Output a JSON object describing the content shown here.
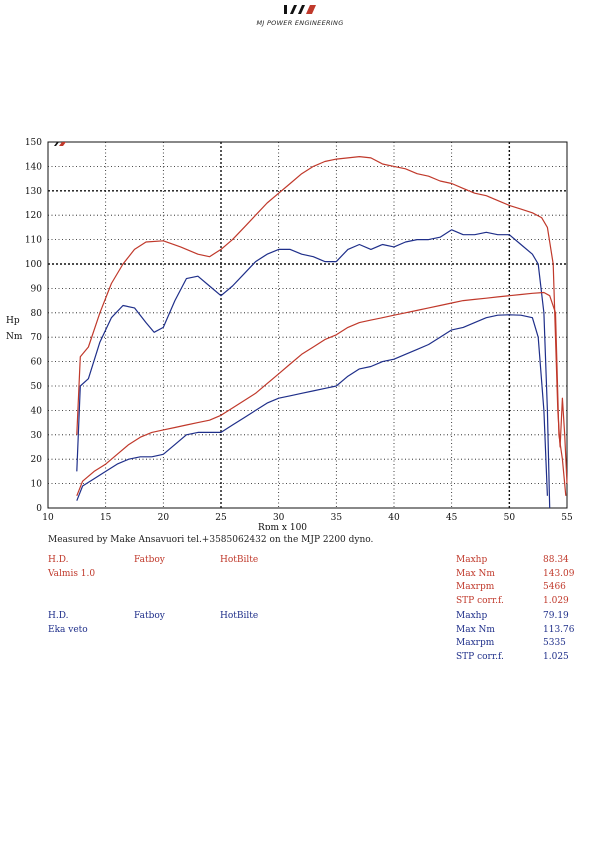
{
  "header": {
    "logo_mark": "MJP",
    "logo_text": "MJ POWER ENGINEERING"
  },
  "measured_note": "Measured by Make Ansavuori tel.+3585062432 on the MJP 2200 dyno.",
  "runs": [
    {
      "color": "#c0392b",
      "make": "H.D.",
      "model": "Fatboy",
      "tag": "HotBilte",
      "name": "Valmis 1.0",
      "stats": [
        {
          "label": "Maxhp",
          "value": "88.34"
        },
        {
          "label": "Max Nm",
          "value": "143.09"
        },
        {
          "label": "Maxrpm",
          "value": "5466"
        },
        {
          "label": "STP corr.f.",
          "value": "1.029"
        }
      ]
    },
    {
      "color": "#1f2f8a",
      "make": "H.D.",
      "model": "Fatboy",
      "tag": "HotBilte",
      "name": "Eka veto",
      "stats": [
        {
          "label": "Maxhp",
          "value": "79.19"
        },
        {
          "label": "Max Nm",
          "value": "113.76"
        },
        {
          "label": "Maxrpm",
          "value": "5335"
        },
        {
          "label": "STP corr.f.",
          "value": "1.025"
        }
      ]
    }
  ],
  "chart_data": {
    "type": "line",
    "xlabel": "Rpm x 100",
    "ylabel": "Hp Nm",
    "ylabel_lines": [
      "Hp",
      "Nm"
    ],
    "xlim": [
      10,
      55
    ],
    "ylim": [
      0,
      150
    ],
    "xticks": [
      10,
      15,
      20,
      25,
      30,
      35,
      40,
      45,
      50,
      55
    ],
    "yticks": [
      0,
      10,
      20,
      30,
      40,
      50,
      60,
      70,
      80,
      90,
      100,
      110,
      120,
      130,
      140,
      150
    ],
    "grid": true,
    "series": [
      {
        "name": "Valmis 1.0 Nm",
        "color": "#c0392b",
        "points": [
          [
            12.5,
            30
          ],
          [
            12.8,
            62
          ],
          [
            13.5,
            66
          ],
          [
            14.5,
            80
          ],
          [
            15.5,
            92
          ],
          [
            16.5,
            100
          ],
          [
            17.5,
            106
          ],
          [
            18.5,
            109
          ],
          [
            20,
            109.5
          ],
          [
            21.5,
            107
          ],
          [
            23,
            104
          ],
          [
            24,
            103
          ],
          [
            25,
            106
          ],
          [
            26,
            110
          ],
          [
            27,
            115
          ],
          [
            28,
            120
          ],
          [
            29,
            125
          ],
          [
            30,
            129
          ],
          [
            31,
            133
          ],
          [
            32,
            137
          ],
          [
            33,
            140
          ],
          [
            34,
            142
          ],
          [
            35,
            143
          ],
          [
            36,
            143.5
          ],
          [
            37,
            144
          ],
          [
            38,
            143.5
          ],
          [
            39,
            141
          ],
          [
            40,
            140
          ],
          [
            41,
            139
          ],
          [
            42,
            137
          ],
          [
            43,
            136
          ],
          [
            44,
            134
          ],
          [
            45,
            133
          ],
          [
            46,
            131
          ],
          [
            47,
            129
          ],
          [
            48,
            128
          ],
          [
            49,
            126
          ],
          [
            50,
            124
          ],
          [
            51,
            122.5
          ],
          [
            52,
            121
          ],
          [
            52.8,
            119
          ],
          [
            53.3,
            115
          ],
          [
            53.8,
            100
          ],
          [
            54,
            70
          ],
          [
            54.2,
            40
          ],
          [
            54.4,
            25
          ],
          [
            54.6,
            45
          ],
          [
            54.8,
            30
          ],
          [
            55,
            10
          ]
        ]
      },
      {
        "name": "Eka veto Nm",
        "color": "#1f2f8a",
        "points": [
          [
            12.5,
            15
          ],
          [
            12.8,
            50
          ],
          [
            13.5,
            53
          ],
          [
            14.5,
            68
          ],
          [
            15.5,
            78
          ],
          [
            16.5,
            83
          ],
          [
            17.5,
            82
          ],
          [
            18.5,
            76
          ],
          [
            19.2,
            72
          ],
          [
            20,
            74
          ],
          [
            21,
            85
          ],
          [
            22,
            94
          ],
          [
            23,
            95
          ],
          [
            24,
            91
          ],
          [
            25,
            87
          ],
          [
            26,
            91
          ],
          [
            27,
            96
          ],
          [
            28,
            101
          ],
          [
            29,
            104
          ],
          [
            30,
            106
          ],
          [
            31,
            106
          ],
          [
            32,
            104
          ],
          [
            33,
            103
          ],
          [
            34,
            101
          ],
          [
            35,
            101
          ],
          [
            36,
            106
          ],
          [
            37,
            108
          ],
          [
            38,
            106
          ],
          [
            39,
            108
          ],
          [
            40,
            107
          ],
          [
            41,
            109
          ],
          [
            42,
            110
          ],
          [
            43,
            110
          ],
          [
            44,
            111
          ],
          [
            45,
            114
          ],
          [
            46,
            112
          ],
          [
            47,
            112
          ],
          [
            48,
            113
          ],
          [
            49,
            112
          ],
          [
            50,
            112
          ],
          [
            51,
            108
          ],
          [
            52,
            104
          ],
          [
            52.5,
            100
          ],
          [
            53,
            80
          ],
          [
            53.3,
            40
          ],
          [
            53.5,
            0
          ]
        ]
      },
      {
        "name": "Valmis 1.0 Hp",
        "color": "#c0392b",
        "points": [
          [
            12.5,
            5
          ],
          [
            13,
            11
          ],
          [
            14,
            15
          ],
          [
            15,
            18
          ],
          [
            16,
            22
          ],
          [
            17,
            26
          ],
          [
            18,
            29
          ],
          [
            19,
            31
          ],
          [
            20,
            32
          ],
          [
            21,
            33
          ],
          [
            22,
            34
          ],
          [
            23,
            35
          ],
          [
            24,
            36
          ],
          [
            25,
            38
          ],
          [
            26,
            41
          ],
          [
            27,
            44
          ],
          [
            28,
            47
          ],
          [
            29,
            51
          ],
          [
            30,
            55
          ],
          [
            31,
            59
          ],
          [
            32,
            63
          ],
          [
            33,
            66
          ],
          [
            34,
            69
          ],
          [
            35,
            71
          ],
          [
            36,
            74
          ],
          [
            37,
            76
          ],
          [
            38,
            77
          ],
          [
            39,
            78
          ],
          [
            40,
            79
          ],
          [
            41,
            80
          ],
          [
            42,
            81
          ],
          [
            43,
            82
          ],
          [
            44,
            83
          ],
          [
            45,
            84
          ],
          [
            46,
            85
          ],
          [
            47,
            85.5
          ],
          [
            48,
            86
          ],
          [
            49,
            86.5
          ],
          [
            50,
            87
          ],
          [
            51,
            87.5
          ],
          [
            52,
            88
          ],
          [
            53,
            88.3
          ],
          [
            53.5,
            87
          ],
          [
            54,
            80
          ],
          [
            54.3,
            30
          ],
          [
            54.6,
            20
          ],
          [
            54.9,
            5
          ]
        ]
      },
      {
        "name": "Eka veto Hp",
        "color": "#1f2f8a",
        "points": [
          [
            12.5,
            3
          ],
          [
            13,
            9
          ],
          [
            14,
            12
          ],
          [
            15,
            15
          ],
          [
            16,
            18
          ],
          [
            17,
            20
          ],
          [
            18,
            21
          ],
          [
            19,
            21
          ],
          [
            20,
            22
          ],
          [
            21,
            26
          ],
          [
            22,
            30
          ],
          [
            23,
            31
          ],
          [
            24,
            31
          ],
          [
            25,
            31
          ],
          [
            26,
            34
          ],
          [
            27,
            37
          ],
          [
            28,
            40
          ],
          [
            29,
            43
          ],
          [
            30,
            45
          ],
          [
            31,
            46
          ],
          [
            32,
            47
          ],
          [
            33,
            48
          ],
          [
            34,
            49
          ],
          [
            35,
            50
          ],
          [
            36,
            54
          ],
          [
            37,
            57
          ],
          [
            38,
            58
          ],
          [
            39,
            60
          ],
          [
            40,
            61
          ],
          [
            41,
            63
          ],
          [
            42,
            65
          ],
          [
            43,
            67
          ],
          [
            44,
            70
          ],
          [
            45,
            73
          ],
          [
            46,
            74
          ],
          [
            47,
            76
          ],
          [
            48,
            78
          ],
          [
            49,
            79
          ],
          [
            50,
            79.2
          ],
          [
            51,
            79
          ],
          [
            52,
            78
          ],
          [
            52.5,
            70
          ],
          [
            53,
            40
          ],
          [
            53.3,
            5
          ]
        ]
      }
    ]
  }
}
